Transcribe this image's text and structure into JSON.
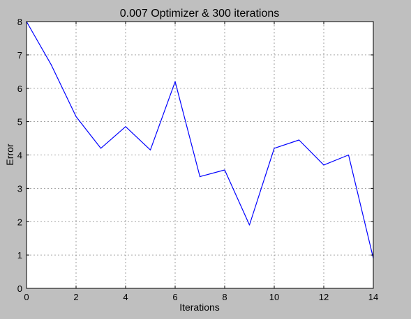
{
  "chart_data": {
    "type": "line",
    "title": "0.007 Optimizer & 300 iterations",
    "xlabel": "Iterations",
    "ylabel": "Error",
    "xlim": [
      0,
      14
    ],
    "ylim": [
      0,
      8
    ],
    "xticks": [
      0,
      2,
      4,
      6,
      8,
      10,
      12,
      14
    ],
    "yticks": [
      0,
      1,
      2,
      3,
      4,
      5,
      6,
      7,
      8
    ],
    "grid": true,
    "series": [
      {
        "color": "#0000ff",
        "x": [
          0,
          1,
          2,
          3,
          4,
          5,
          6,
          7,
          8,
          9,
          10,
          11,
          12,
          13,
          14
        ],
        "y": [
          8.0,
          6.7,
          5.15,
          4.2,
          4.85,
          4.15,
          6.2,
          3.35,
          3.55,
          1.9,
          4.2,
          4.45,
          3.7,
          4.0,
          0.9
        ]
      }
    ]
  },
  "colors": {
    "figure_background": "#bfbfbf",
    "axes_background": "#ffffff",
    "grid": "#888888"
  }
}
